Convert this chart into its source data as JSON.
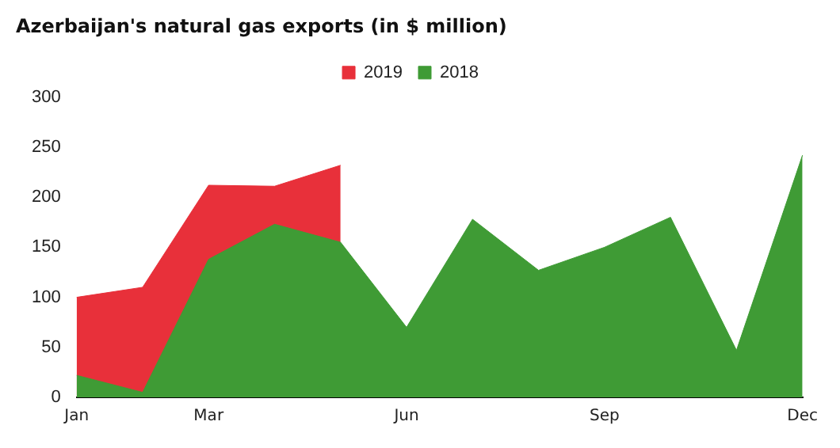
{
  "chart_data": {
    "type": "area",
    "title": "Azerbaijan's natural gas exports (in $ million)",
    "categories": [
      "Jan",
      null,
      "Mar",
      null,
      null,
      "Jun",
      null,
      null,
      "Sep",
      null,
      null,
      "Dec"
    ],
    "series": [
      {
        "name": "2019",
        "color": "#e8303a",
        "values": [
          100,
          110,
          212,
          211,
          232,
          null,
          null,
          null,
          null,
          null,
          null,
          null
        ]
      },
      {
        "name": "2018",
        "color": "#3f9b35",
        "values": [
          22,
          5,
          138,
          173,
          155,
          70,
          178,
          127,
          150,
          180,
          47,
          242
        ]
      }
    ],
    "ylim": [
      0,
      300
    ],
    "yticks": [
      0,
      50,
      100,
      150,
      200,
      250,
      300
    ],
    "grid": false,
    "legend": "top"
  }
}
